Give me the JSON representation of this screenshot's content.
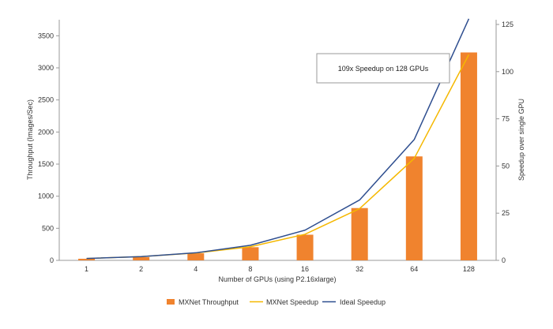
{
  "chart_data": {
    "type": "bar",
    "categories": [
      "1",
      "2",
      "4",
      "8",
      "16",
      "32",
      "64",
      "128"
    ],
    "series": [
      {
        "name": "MXNet Throughput",
        "kind": "bar",
        "axis": "left",
        "color": "#F0832E",
        "values": [
          25,
          50,
          110,
          205,
          400,
          815,
          1620,
          3240
        ]
      },
      {
        "name": "MXNet Speedup",
        "kind": "line",
        "axis": "right",
        "color": "#F5B800",
        "values": [
          1,
          2,
          3.9,
          7.2,
          13.8,
          27.4,
          54,
          109
        ]
      },
      {
        "name": "Ideal Speedup",
        "kind": "line",
        "axis": "right",
        "color": "#2E4E8F",
        "values": [
          1,
          2,
          4,
          8,
          16,
          32,
          64,
          128
        ]
      }
    ],
    "xlabel": "Number of GPUs (using P2.16xlarge)",
    "ylabel": "Throughput (Images/Sec)",
    "y2label": "Speedup over single GPU",
    "ylim": [
      0,
      3750
    ],
    "y2lim": [
      0,
      127.5
    ],
    "yticks": [
      0,
      500,
      1000,
      1500,
      2000,
      2500,
      3000,
      3500
    ],
    "y2ticks": [
      0,
      25,
      50,
      75,
      100,
      125
    ],
    "grid": false,
    "legend_position": "bottom",
    "annotation": "109x Speedup on 128 GPUs"
  }
}
